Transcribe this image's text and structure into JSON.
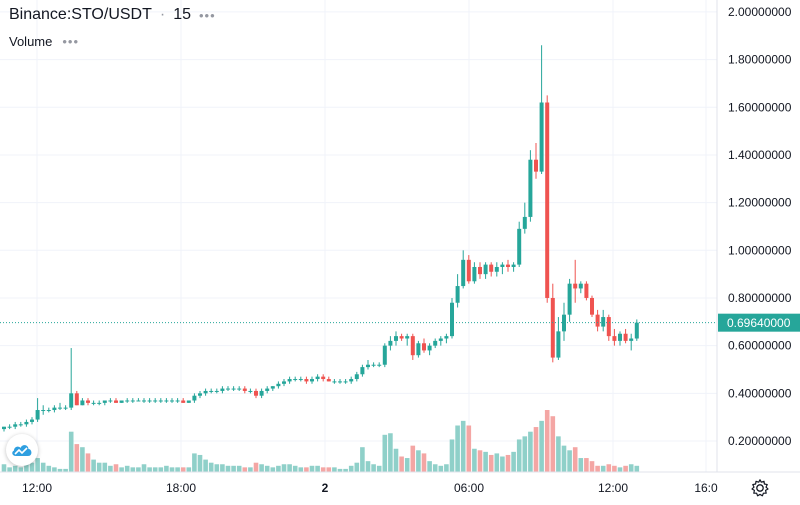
{
  "header": {
    "symbol": "Binance:STO/USDT",
    "interval": "15",
    "separator": "·",
    "more_dots": "•••",
    "volume_label": "Volume",
    "volume_dots": "•••"
  },
  "colors": {
    "up": "#26a69a",
    "down": "#ef5350",
    "volume_up": "#8fd0c9",
    "volume_down": "#f4a6a4",
    "grid": "#f0f3fa",
    "price_tag": "#26a69a",
    "text": "#131722",
    "axis_text": "#131722"
  },
  "icons": {
    "logo": "tradingview-cloud-icon",
    "settings": "gear-icon"
  },
  "chart_data": {
    "type": "candlestick",
    "title": "Binance:STO/USDT",
    "interval": "15",
    "y_ticks": [
      "2.00000000",
      "1.80000000",
      "1.60000000",
      "1.40000000",
      "1.20000000",
      "1.00000000",
      "0.80000000",
      "0.60000000",
      "0.40000000",
      "0.20000000"
    ],
    "y_tick_values": [
      2.0,
      1.8,
      1.6,
      1.4,
      1.2,
      1.0,
      0.8,
      0.6,
      0.4,
      0.2
    ],
    "ylim": [
      0.07,
      2.05
    ],
    "x_ticks": [
      "12:00",
      "18:00",
      "2",
      "06:00",
      "12:00",
      "16:0"
    ],
    "x_tick_bold": [
      false,
      false,
      true,
      false,
      false,
      false
    ],
    "last_price": 0.6964,
    "last_price_label": "0.69640000",
    "grid": true,
    "candles": [
      [
        0.25,
        0.26,
        0.24,
        0.26,
        0.5
      ],
      [
        0.26,
        0.27,
        0.25,
        0.26,
        0.3
      ],
      [
        0.26,
        0.28,
        0.25,
        0.27,
        0.4
      ],
      [
        0.27,
        0.28,
        0.26,
        0.27,
        0.3
      ],
      [
        0.27,
        0.29,
        0.26,
        0.28,
        0.5
      ],
      [
        0.28,
        0.3,
        0.27,
        0.29,
        0.6
      ],
      [
        0.29,
        0.38,
        0.28,
        0.33,
        0.9
      ],
      [
        0.33,
        0.35,
        0.31,
        0.33,
        0.6
      ],
      [
        0.33,
        0.34,
        0.32,
        0.33,
        0.4
      ],
      [
        0.33,
        0.35,
        0.32,
        0.34,
        0.3
      ],
      [
        0.34,
        0.36,
        0.33,
        0.34,
        0.2
      ],
      [
        0.34,
        0.35,
        0.33,
        0.34,
        0.2
      ],
      [
        0.34,
        0.59,
        0.33,
        0.4,
        2.6
      ],
      [
        0.4,
        0.41,
        0.35,
        0.35,
        1.8
      ],
      [
        0.35,
        0.38,
        0.35,
        0.37,
        1.6
      ],
      [
        0.37,
        0.38,
        0.35,
        0.36,
        1.2
      ],
      [
        0.36,
        0.37,
        0.35,
        0.36,
        0.8
      ],
      [
        0.36,
        0.37,
        0.35,
        0.36,
        0.6
      ],
      [
        0.36,
        0.37,
        0.35,
        0.37,
        0.6
      ],
      [
        0.37,
        0.38,
        0.36,
        0.37,
        0.4
      ],
      [
        0.37,
        0.38,
        0.36,
        0.36,
        0.5
      ],
      [
        0.36,
        0.37,
        0.36,
        0.37,
        0.3
      ],
      [
        0.37,
        0.38,
        0.36,
        0.37,
        0.4
      ],
      [
        0.37,
        0.38,
        0.36,
        0.37,
        0.3
      ],
      [
        0.37,
        0.38,
        0.37,
        0.37,
        0.3
      ],
      [
        0.37,
        0.38,
        0.36,
        0.37,
        0.5
      ],
      [
        0.37,
        0.38,
        0.36,
        0.37,
        0.3
      ],
      [
        0.37,
        0.38,
        0.36,
        0.37,
        0.3
      ],
      [
        0.37,
        0.38,
        0.36,
        0.37,
        0.3
      ],
      [
        0.37,
        0.38,
        0.36,
        0.37,
        0.4
      ],
      [
        0.37,
        0.38,
        0.36,
        0.37,
        0.3
      ],
      [
        0.37,
        0.38,
        0.36,
        0.37,
        0.3
      ],
      [
        0.37,
        0.38,
        0.36,
        0.36,
        0.3
      ],
      [
        0.36,
        0.37,
        0.36,
        0.37,
        0.3
      ],
      [
        0.37,
        0.4,
        0.36,
        0.39,
        1.2
      ],
      [
        0.39,
        0.41,
        0.38,
        0.4,
        1.1
      ],
      [
        0.4,
        0.42,
        0.39,
        0.41,
        0.8
      ],
      [
        0.41,
        0.42,
        0.4,
        0.41,
        0.6
      ],
      [
        0.41,
        0.42,
        0.4,
        0.41,
        0.5
      ],
      [
        0.41,
        0.43,
        0.4,
        0.42,
        0.5
      ],
      [
        0.42,
        0.43,
        0.41,
        0.42,
        0.4
      ],
      [
        0.42,
        0.43,
        0.41,
        0.42,
        0.4
      ],
      [
        0.42,
        0.43,
        0.41,
        0.42,
        0.4
      ],
      [
        0.42,
        0.43,
        0.4,
        0.41,
        0.3
      ],
      [
        0.41,
        0.42,
        0.4,
        0.41,
        0.3
      ],
      [
        0.41,
        0.42,
        0.38,
        0.39,
        0.6
      ],
      [
        0.39,
        0.42,
        0.38,
        0.41,
        0.5
      ],
      [
        0.41,
        0.43,
        0.4,
        0.42,
        0.4
      ],
      [
        0.42,
        0.43,
        0.41,
        0.43,
        0.3
      ],
      [
        0.43,
        0.45,
        0.42,
        0.44,
        0.4
      ],
      [
        0.44,
        0.46,
        0.43,
        0.45,
        0.5
      ],
      [
        0.45,
        0.47,
        0.44,
        0.46,
        0.5
      ],
      [
        0.46,
        0.47,
        0.45,
        0.46,
        0.4
      ],
      [
        0.46,
        0.47,
        0.45,
        0.46,
        0.3
      ],
      [
        0.46,
        0.47,
        0.44,
        0.45,
        0.3
      ],
      [
        0.45,
        0.47,
        0.44,
        0.46,
        0.4
      ],
      [
        0.46,
        0.48,
        0.45,
        0.47,
        0.4
      ],
      [
        0.47,
        0.48,
        0.45,
        0.46,
        0.3
      ],
      [
        0.46,
        0.47,
        0.45,
        0.45,
        0.3
      ],
      [
        0.45,
        0.46,
        0.44,
        0.45,
        0.3
      ],
      [
        0.45,
        0.46,
        0.44,
        0.45,
        0.2
      ],
      [
        0.45,
        0.46,
        0.44,
        0.45,
        0.2
      ],
      [
        0.45,
        0.47,
        0.44,
        0.46,
        0.4
      ],
      [
        0.46,
        0.49,
        0.45,
        0.48,
        0.6
      ],
      [
        0.48,
        0.52,
        0.47,
        0.51,
        1.6
      ],
      [
        0.51,
        0.54,
        0.5,
        0.52,
        0.7
      ],
      [
        0.52,
        0.53,
        0.51,
        0.52,
        0.5
      ],
      [
        0.52,
        0.53,
        0.51,
        0.52,
        0.4
      ],
      [
        0.52,
        0.61,
        0.51,
        0.6,
        2.4
      ],
      [
        0.6,
        0.64,
        0.58,
        0.62,
        2.5
      ],
      [
        0.62,
        0.66,
        0.6,
        0.64,
        1.5
      ],
      [
        0.64,
        0.65,
        0.62,
        0.63,
        1.0
      ],
      [
        0.63,
        0.65,
        0.6,
        0.64,
        0.9
      ],
      [
        0.64,
        0.65,
        0.54,
        0.56,
        1.7
      ],
      [
        0.56,
        0.62,
        0.55,
        0.61,
        1.4
      ],
      [
        0.61,
        0.63,
        0.57,
        0.58,
        1.2
      ],
      [
        0.58,
        0.61,
        0.56,
        0.6,
        0.7
      ],
      [
        0.6,
        0.63,
        0.59,
        0.62,
        0.5
      ],
      [
        0.62,
        0.64,
        0.6,
        0.63,
        0.4
      ],
      [
        0.63,
        0.65,
        0.61,
        0.64,
        0.5
      ],
      [
        0.64,
        0.8,
        0.63,
        0.78,
        2.1
      ],
      [
        0.78,
        0.9,
        0.76,
        0.85,
        3.0
      ],
      [
        0.85,
        1.0,
        0.84,
        0.96,
        3.3
      ],
      [
        0.96,
        0.98,
        0.86,
        0.87,
        3.0
      ],
      [
        0.87,
        0.95,
        0.86,
        0.93,
        1.5
      ],
      [
        0.93,
        0.95,
        0.88,
        0.9,
        1.4
      ],
      [
        0.9,
        0.95,
        0.88,
        0.94,
        1.3
      ],
      [
        0.94,
        0.95,
        0.89,
        0.91,
        1.1
      ],
      [
        0.91,
        0.95,
        0.89,
        0.93,
        1.2
      ],
      [
        0.93,
        0.95,
        0.9,
        0.94,
        1.0
      ],
      [
        0.94,
        0.96,
        0.91,
        0.93,
        1.1
      ],
      [
        0.93,
        0.95,
        0.91,
        0.94,
        1.3
      ],
      [
        0.94,
        1.12,
        0.93,
        1.09,
        2.1
      ],
      [
        1.09,
        1.2,
        1.07,
        1.14,
        2.3
      ],
      [
        1.14,
        1.42,
        1.12,
        1.38,
        2.6
      ],
      [
        1.38,
        1.45,
        1.3,
        1.33,
        2.9
      ],
      [
        1.33,
        1.86,
        1.32,
        1.62,
        3.3
      ],
      [
        1.62,
        1.65,
        0.78,
        0.8,
        4.0
      ],
      [
        0.8,
        0.86,
        0.53,
        0.55,
        3.6
      ],
      [
        0.55,
        0.72,
        0.54,
        0.66,
        2.3
      ],
      [
        0.66,
        0.78,
        0.62,
        0.73,
        1.7
      ],
      [
        0.73,
        0.88,
        0.7,
        0.86,
        1.4
      ],
      [
        0.86,
        0.96,
        0.78,
        0.84,
        1.6
      ],
      [
        0.84,
        0.87,
        0.82,
        0.86,
        0.9
      ],
      [
        0.86,
        0.87,
        0.79,
        0.8,
        0.9
      ],
      [
        0.8,
        0.81,
        0.72,
        0.73,
        0.7
      ],
      [
        0.73,
        0.75,
        0.66,
        0.68,
        0.4
      ],
      [
        0.68,
        0.75,
        0.66,
        0.72,
        0.4
      ],
      [
        0.72,
        0.73,
        0.62,
        0.64,
        0.5
      ],
      [
        0.64,
        0.67,
        0.6,
        0.62,
        0.4
      ],
      [
        0.62,
        0.66,
        0.6,
        0.65,
        0.3
      ],
      [
        0.65,
        0.67,
        0.61,
        0.62,
        0.4
      ],
      [
        0.62,
        0.65,
        0.58,
        0.63,
        0.5
      ],
      [
        0.63,
        0.71,
        0.62,
        0.6964,
        0.4
      ]
    ]
  }
}
